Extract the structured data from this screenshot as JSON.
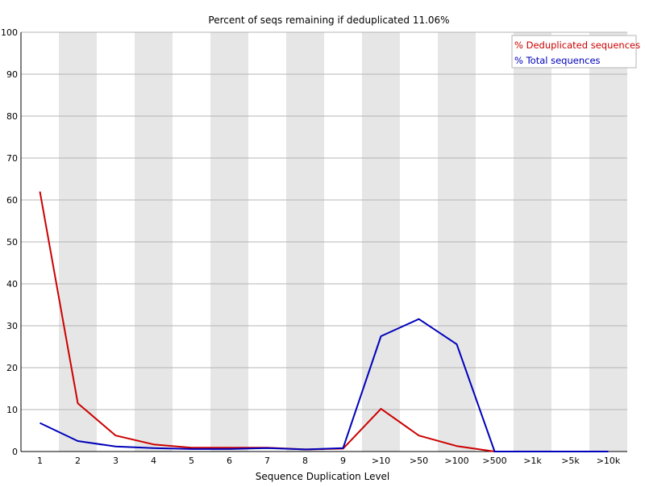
{
  "chart_data": {
    "type": "line",
    "title": "Percent of seqs remaining if deduplicated 11.06%",
    "xlabel": "Sequence Duplication Level",
    "ylabel": "",
    "categories": [
      "1",
      "2",
      "3",
      "4",
      "5",
      "6",
      "7",
      "8",
      "9",
      ">10",
      ">50",
      ">100",
      ">500",
      ">1k",
      ">5k",
      ">10k"
    ],
    "ylim": [
      0,
      100
    ],
    "yticks": [
      0,
      10,
      20,
      30,
      40,
      50,
      60,
      70,
      80,
      90,
      100
    ],
    "grid": true,
    "legend_position": "top-right",
    "series": [
      {
        "name": "% Deduplicated sequences",
        "color": "#cc0000",
        "values": [
          62.0,
          11.5,
          3.8,
          1.7,
          0.9,
          0.9,
          0.9,
          0.5,
          0.7,
          10.2,
          3.8,
          1.3,
          0.0,
          0.0,
          0.0,
          0.0
        ]
      },
      {
        "name": "% Total sequences",
        "color": "#0000bb",
        "values": [
          6.8,
          2.5,
          1.2,
          0.8,
          0.6,
          0.6,
          0.8,
          0.5,
          0.8,
          27.5,
          31.6,
          25.6,
          0.0,
          0.0,
          0.0,
          0.0
        ]
      }
    ],
    "band_color": "#e6e6e6",
    "grid_color": "#b4b4b4"
  }
}
